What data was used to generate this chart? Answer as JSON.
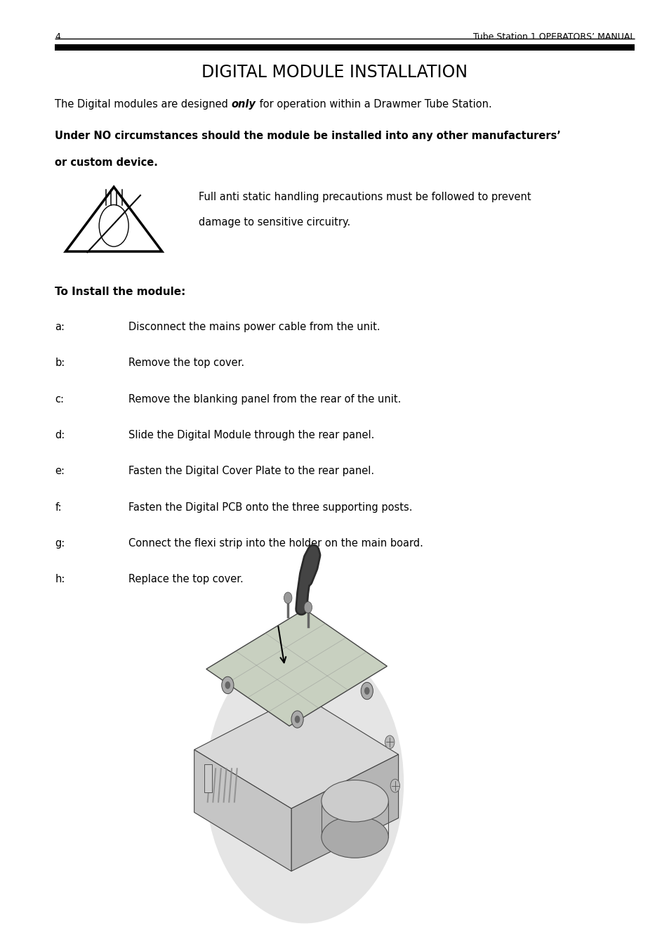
{
  "page_number": "4",
  "header_right": "Tube Station 1 OPERATORS’ MANUAL",
  "title": "DIGITAL MODULE INSTALLATION",
  "bg_color": "#ffffff",
  "para1_pre": "The Digital modules are designed ",
  "para1_bold": "only",
  "para1_post": " for operation within a Drawmer Tube Station.",
  "para2_line1": "Under NO circumstances should the module be installed into any other manufacturers’",
  "para2_line2": "or custom device.",
  "warning_text_line1": "Full anti static handling precautions must be followed to prevent",
  "warning_text_line2": "damage to sensitive circuitry.",
  "install_header": "To Install the module:",
  "steps": [
    [
      "a:",
      "Disconnect the mains power cable from the unit."
    ],
    [
      "b:",
      "Remove the top cover."
    ],
    [
      "c:",
      "Remove the blanking panel from the rear of the unit."
    ],
    [
      "d:",
      "Slide the Digital Module through the rear panel."
    ],
    [
      "e:",
      "Fasten the Digital Cover Plate to the rear panel."
    ],
    [
      "f:",
      "Fasten the Digital PCB onto the three supporting posts."
    ],
    [
      "g:",
      "Connect the flexi strip into the holder on the main board."
    ],
    [
      "h:",
      "Replace the top cover."
    ]
  ],
  "ml": 0.082,
  "mr": 0.948,
  "tc": "#000000",
  "fs": 10.5,
  "fs_header": 9,
  "fs_title": 17,
  "fs_install": 11
}
